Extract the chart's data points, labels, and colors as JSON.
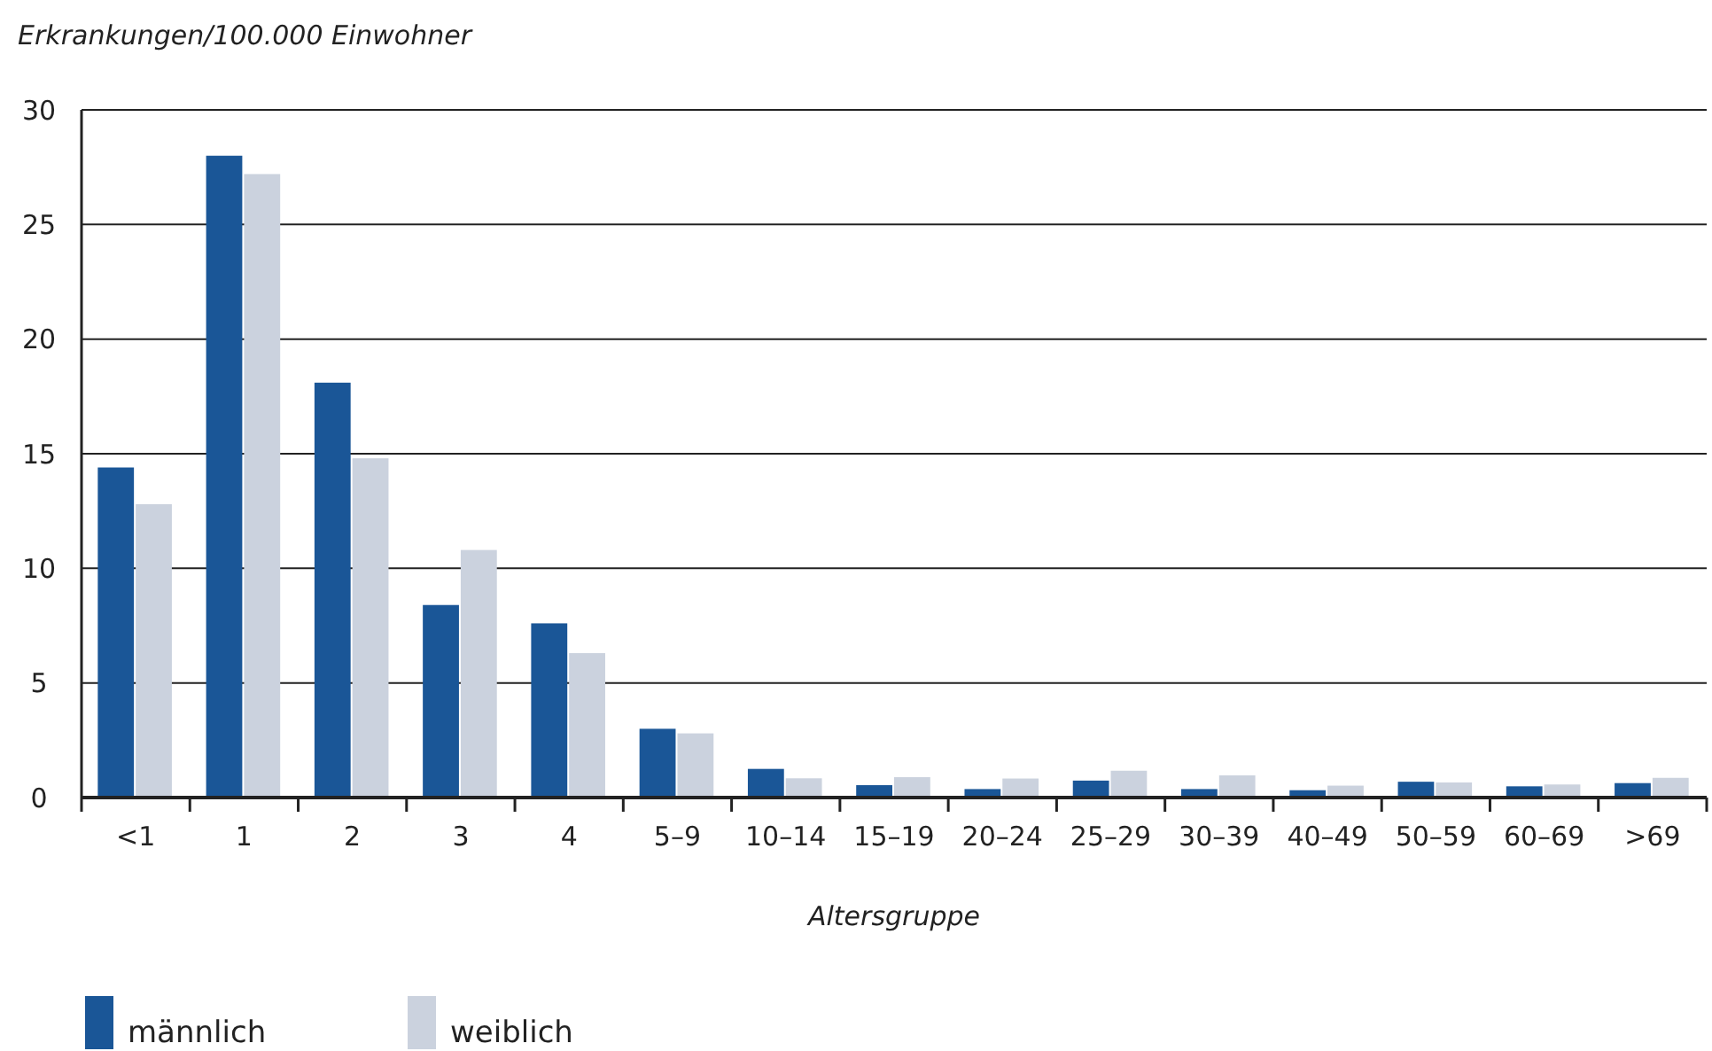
{
  "chart_data": {
    "type": "bar",
    "xlabel": "Altersgruppe",
    "ylabel": "Erkrankungen/100.000 Einwohner",
    "categories": [
      "<1",
      "1",
      "2",
      "3",
      "4",
      "5–9",
      "10–14",
      "15–19",
      "20–24",
      "25–29",
      "30–39",
      "40–49",
      "50–59",
      "60–69",
      ">69"
    ],
    "series": [
      {
        "name": "männlich",
        "color": "#1a5697",
        "values": [
          14.4,
          28.0,
          18.1,
          8.4,
          7.6,
          3.0,
          1.25,
          0.54,
          0.37,
          0.74,
          0.37,
          0.32,
          0.69,
          0.49,
          0.63
        ]
      },
      {
        "name": "weiblich",
        "color": "#cbd2de",
        "values": [
          12.8,
          27.2,
          14.8,
          10.8,
          6.3,
          2.8,
          0.84,
          0.89,
          0.83,
          1.17,
          0.97,
          0.52,
          0.66,
          0.57,
          0.86
        ]
      }
    ],
    "ylim": [
      0,
      30
    ],
    "yticks": [
      0,
      5,
      10,
      15,
      20,
      25,
      30
    ],
    "grid": "y",
    "legend": "bottom left"
  }
}
